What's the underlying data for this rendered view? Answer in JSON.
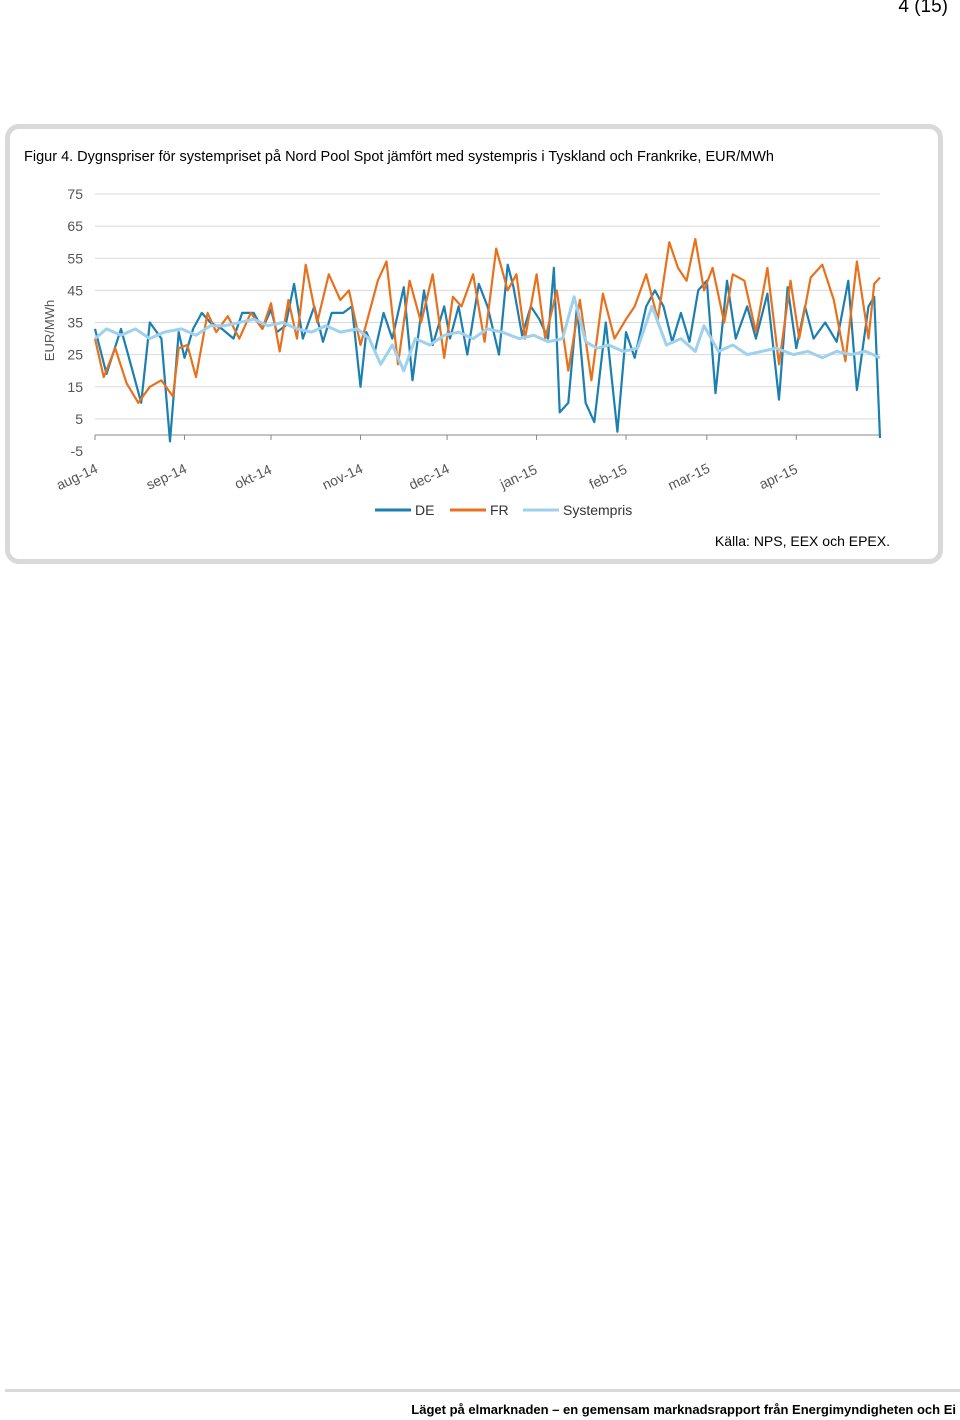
{
  "page_number": "4 (15)",
  "figure": {
    "caption": "Figur 4. Dygnspriser för systempriset på Nord Pool Spot jämfört med systempris i Tyskland och Frankrike, EUR/MWh",
    "source": "Källa: NPS, EEX och EPEX."
  },
  "footer": "Läget på elmarknaden – en gemensam marknadsrapport från Energimyndigheten och Ei",
  "colors": {
    "DE": "#1b7fb0",
    "FR": "#e8711e",
    "Systempris": "#9fd1ef"
  },
  "chart_data": {
    "type": "line",
    "title": "",
    "xlabel": "",
    "ylabel": "EUR/MWh",
    "ylim": [
      -5,
      75
    ],
    "yticks": [
      "75",
      "65",
      "55",
      "45",
      "35",
      "25",
      "15",
      "5",
      "-5"
    ],
    "x_tick_labels": [
      "aug-14",
      "sep-14",
      "okt-14",
      "nov-14",
      "dec-14",
      "jan-15",
      "feb-15",
      "mar-15",
      "apr-15"
    ],
    "x_range": [
      "2014-08-01",
      "2015-04-30"
    ],
    "legend": [
      "DE",
      "FR",
      "Systempris"
    ],
    "legend_position": "bottom",
    "grid": "horizontal",
    "series": [
      {
        "name": "DE",
        "dates": [
          "2014-08-01",
          "2014-08-05",
          "2014-08-10",
          "2014-08-14",
          "2014-08-17",
          "2014-08-20",
          "2014-08-24",
          "2014-08-27",
          "2014-08-30",
          "2014-09-01",
          "2014-09-04",
          "2014-09-07",
          "2014-09-10",
          "2014-09-14",
          "2014-09-18",
          "2014-09-21",
          "2014-09-25",
          "2014-09-28",
          "2014-10-01",
          "2014-10-03",
          "2014-10-06",
          "2014-10-09",
          "2014-10-12",
          "2014-10-16",
          "2014-10-19",
          "2014-10-22",
          "2014-10-26",
          "2014-10-29",
          "2014-11-01",
          "2014-11-03",
          "2014-11-06",
          "2014-11-09",
          "2014-11-12",
          "2014-11-16",
          "2014-11-19",
          "2014-11-23",
          "2014-11-26",
          "2014-11-30",
          "2014-12-02",
          "2014-12-05",
          "2014-12-08",
          "2014-12-12",
          "2014-12-15",
          "2014-12-19",
          "2014-12-22",
          "2014-12-24",
          "2014-12-27",
          "2014-12-30",
          "2015-01-02",
          "2015-01-05",
          "2015-01-07",
          "2015-01-09",
          "2015-01-12",
          "2015-01-15",
          "2015-01-18",
          "2015-01-21",
          "2015-01-25",
          "2015-01-29",
          "2015-02-01",
          "2015-02-04",
          "2015-02-08",
          "2015-02-11",
          "2015-02-14",
          "2015-02-17",
          "2015-02-20",
          "2015-02-23",
          "2015-02-26",
          "2015-03-01",
          "2015-03-04",
          "2015-03-08",
          "2015-03-11",
          "2015-03-15",
          "2015-03-18",
          "2015-03-22",
          "2015-03-26",
          "2015-03-29",
          "2015-04-01",
          "2015-04-04",
          "2015-04-07",
          "2015-04-11",
          "2015-04-15",
          "2015-04-19",
          "2015-04-22",
          "2015-04-26",
          "2015-04-28",
          "2015-04-30"
        ],
        "values": [
          33,
          19,
          33,
          20,
          10,
          35,
          30,
          -2,
          32,
          24,
          33,
          38,
          35,
          33,
          30,
          38,
          38,
          33,
          39,
          32,
          34,
          47,
          30,
          40,
          29,
          38,
          38,
          40,
          15,
          32,
          26,
          38,
          30,
          46,
          17,
          45,
          28,
          40,
          30,
          40,
          25,
          47,
          40,
          25,
          53,
          46,
          31,
          40,
          36,
          30,
          52,
          7,
          10,
          40,
          10,
          4,
          35,
          1,
          32,
          24,
          40,
          45,
          40,
          29,
          38,
          29,
          45,
          48,
          13,
          48,
          30,
          40,
          30,
          44,
          11,
          46,
          27,
          40,
          30,
          35,
          29,
          48,
          14,
          40,
          43,
          -1
        ]
      },
      {
        "name": "FR",
        "dates": [
          "2014-08-01",
          "2014-08-04",
          "2014-08-08",
          "2014-08-12",
          "2014-08-16",
          "2014-08-20",
          "2014-08-24",
          "2014-08-28",
          "2014-08-30",
          "2014-09-02",
          "2014-09-05",
          "2014-09-09",
          "2014-09-12",
          "2014-09-16",
          "2014-09-20",
          "2014-09-24",
          "2014-09-28",
          "2014-10-01",
          "2014-10-04",
          "2014-10-07",
          "2014-10-10",
          "2014-10-13",
          "2014-10-17",
          "2014-10-21",
          "2014-10-25",
          "2014-10-28",
          "2014-11-01",
          "2014-11-04",
          "2014-11-07",
          "2014-11-10",
          "2014-11-14",
          "2014-11-18",
          "2014-11-22",
          "2014-11-26",
          "2014-11-30",
          "2014-12-03",
          "2014-12-06",
          "2014-12-10",
          "2014-12-14",
          "2014-12-18",
          "2014-12-22",
          "2014-12-25",
          "2014-12-28",
          "2015-01-01",
          "2015-01-04",
          "2015-01-08",
          "2015-01-12",
          "2015-01-16",
          "2015-01-20",
          "2015-01-24",
          "2015-01-28",
          "2015-02-01",
          "2015-02-04",
          "2015-02-08",
          "2015-02-12",
          "2015-02-16",
          "2015-02-19",
          "2015-02-22",
          "2015-02-25",
          "2015-02-28",
          "2015-03-03",
          "2015-03-07",
          "2015-03-10",
          "2015-03-14",
          "2015-03-18",
          "2015-03-22",
          "2015-03-26",
          "2015-03-30",
          "2015-04-02",
          "2015-04-06",
          "2015-04-10",
          "2015-04-14",
          "2015-04-18",
          "2015-04-22",
          "2015-04-26",
          "2015-04-28",
          "2015-04-30"
        ],
        "values": [
          30,
          18,
          27,
          16,
          10,
          15,
          17,
          12,
          27,
          28,
          18,
          38,
          32,
          37,
          30,
          38,
          33,
          41,
          26,
          42,
          30,
          53,
          35,
          50,
          42,
          45,
          28,
          38,
          48,
          54,
          22,
          48,
          35,
          50,
          24,
          43,
          40,
          50,
          29,
          58,
          45,
          50,
          30,
          50,
          30,
          45,
          20,
          42,
          17,
          44,
          30,
          36,
          40,
          50,
          36,
          60,
          52,
          48,
          61,
          45,
          52,
          35,
          50,
          48,
          32,
          52,
          22,
          48,
          30,
          49,
          53,
          42,
          23,
          54,
          30,
          47,
          49
        ]
      },
      {
        "name": "Systempris",
        "dates": [
          "2014-08-01",
          "2014-08-05",
          "2014-08-10",
          "2014-08-15",
          "2014-08-20",
          "2014-08-25",
          "2014-08-31",
          "2014-09-05",
          "2014-09-10",
          "2014-09-15",
          "2014-09-20",
          "2014-09-25",
          "2014-09-30",
          "2014-10-05",
          "2014-10-10",
          "2014-10-15",
          "2014-10-20",
          "2014-10-25",
          "2014-10-31",
          "2014-11-04",
          "2014-11-08",
          "2014-11-12",
          "2014-11-16",
          "2014-11-20",
          "2014-11-25",
          "2014-11-30",
          "2014-12-05",
          "2014-12-10",
          "2014-12-15",
          "2014-12-20",
          "2014-12-26",
          "2014-12-31",
          "2015-01-05",
          "2015-01-10",
          "2015-01-14",
          "2015-01-18",
          "2015-01-22",
          "2015-01-26",
          "2015-01-31",
          "2015-02-05",
          "2015-02-10",
          "2015-02-15",
          "2015-02-20",
          "2015-02-25",
          "2015-02-28",
          "2015-03-05",
          "2015-03-10",
          "2015-03-15",
          "2015-03-20",
          "2015-03-25",
          "2015-03-31",
          "2015-04-05",
          "2015-04-10",
          "2015-04-15",
          "2015-04-20",
          "2015-04-25",
          "2015-04-30"
        ],
        "values": [
          30,
          33,
          31,
          33,
          30,
          32,
          33,
          31,
          34,
          34,
          35,
          36,
          34,
          35,
          33,
          32,
          34,
          32,
          33,
          30,
          22,
          28,
          20,
          30,
          28,
          31,
          32,
          30,
          33,
          32,
          30,
          31,
          29,
          30,
          43,
          29,
          27,
          28,
          26,
          27,
          40,
          28,
          30,
          26,
          34,
          26,
          28,
          25,
          26,
          27,
          25,
          26,
          24,
          26,
          25,
          26,
          24
        ]
      }
    ]
  }
}
